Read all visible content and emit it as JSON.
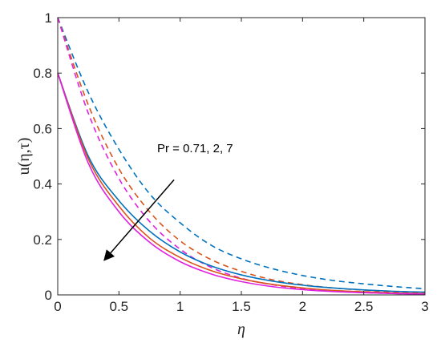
{
  "chart_data": {
    "type": "line",
    "xlabel": "η",
    "ylabel": "u(η,τ)",
    "xlim": [
      0,
      3
    ],
    "ylim": [
      0,
      1
    ],
    "x_ticks": [
      "0",
      "0.5",
      "1",
      "1.5",
      "2",
      "2.5",
      "3"
    ],
    "y_ticks": [
      "0",
      "0.2",
      "0.4",
      "0.6",
      "0.8",
      "1"
    ],
    "grid": false,
    "annotation": {
      "text": "Pr = 0.71, 2, 7",
      "arrow_from": [
        0.95,
        0.415
      ],
      "arrow_to": [
        0.38,
        0.125
      ]
    },
    "x": [
      0,
      0.25,
      0.5,
      0.75,
      1,
      1.25,
      1.5,
      1.75,
      2,
      2.25,
      2.5,
      2.75,
      3
    ],
    "series": [
      {
        "color": "#0072BD",
        "style": "dashed",
        "values": [
          1.0,
          0.73,
          0.525,
          0.365,
          0.26,
          0.18,
          0.13,
          0.095,
          0.07,
          0.052,
          0.04,
          0.03,
          0.022
        ]
      },
      {
        "color": "#D95319",
        "style": "dashed",
        "values": [
          1.0,
          0.685,
          0.455,
          0.3,
          0.195,
          0.128,
          0.085,
          0.055,
          0.037,
          0.025,
          0.017,
          0.011,
          0.008
        ]
      },
      {
        "color": "#E020E0",
        "style": "dashed",
        "values": [
          1.0,
          0.655,
          0.42,
          0.265,
          0.165,
          0.1,
          0.06,
          0.037,
          0.022,
          0.013,
          0.008,
          0.005,
          0.003
        ]
      },
      {
        "color": "#0072BD",
        "style": "solid",
        "values": [
          0.8,
          0.5,
          0.34,
          0.23,
          0.155,
          0.105,
          0.072,
          0.05,
          0.035,
          0.025,
          0.018,
          0.013,
          0.01
        ]
      },
      {
        "color": "#D95319",
        "style": "solid",
        "values": [
          0.8,
          0.49,
          0.32,
          0.205,
          0.135,
          0.088,
          0.058,
          0.038,
          0.025,
          0.016,
          0.011,
          0.007,
          0.005
        ]
      },
      {
        "color": "#E020E0",
        "style": "solid",
        "values": [
          0.8,
          0.475,
          0.3,
          0.19,
          0.12,
          0.076,
          0.048,
          0.03,
          0.019,
          0.012,
          0.008,
          0.005,
          0.003
        ]
      }
    ]
  }
}
